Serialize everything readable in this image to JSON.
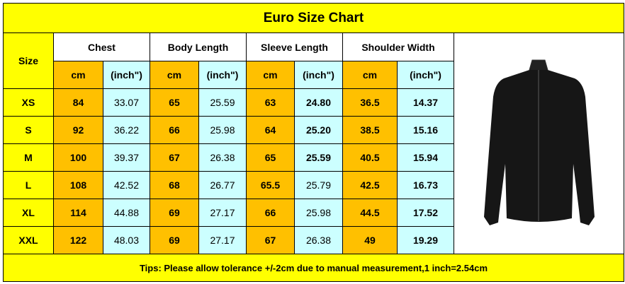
{
  "title": "Euro Size Chart",
  "header": {
    "size": "Size",
    "groups": [
      "Chest",
      "Body Length",
      "Sleeve Length",
      "Shoulder Width"
    ],
    "units": [
      "cm",
      "(inch\")",
      "cm",
      "(inch\")",
      "cm",
      "(inch\")",
      "cm",
      "(inch\")"
    ]
  },
  "rows": [
    {
      "size": "XS",
      "values": [
        "84",
        "33.07",
        "65",
        "25.59",
        "63",
        "24.80",
        "36.5",
        "14.37"
      ]
    },
    {
      "size": "S",
      "values": [
        "92",
        "36.22",
        "66",
        "25.98",
        "64",
        "25.20",
        "38.5",
        "15.16"
      ]
    },
    {
      "size": "M",
      "values": [
        "100",
        "39.37",
        "67",
        "26.38",
        "65",
        "25.59",
        "40.5",
        "15.94"
      ]
    },
    {
      "size": "L",
      "values": [
        "108",
        "42.52",
        "68",
        "26.77",
        "65.5",
        "25.79",
        "42.5",
        "16.73"
      ]
    },
    {
      "size": "XL",
      "values": [
        "114",
        "44.88",
        "69",
        "27.17",
        "66",
        "25.98",
        "44.5",
        "17.52"
      ]
    },
    {
      "size": "XXL",
      "values": [
        "122",
        "48.03",
        "69",
        "27.17",
        "67",
        "26.38",
        "49",
        "19.29"
      ]
    }
  ],
  "tips": "Tips: Please allow tolerance +/-2cm due to manual measurement,1 inch=2.54cm"
}
